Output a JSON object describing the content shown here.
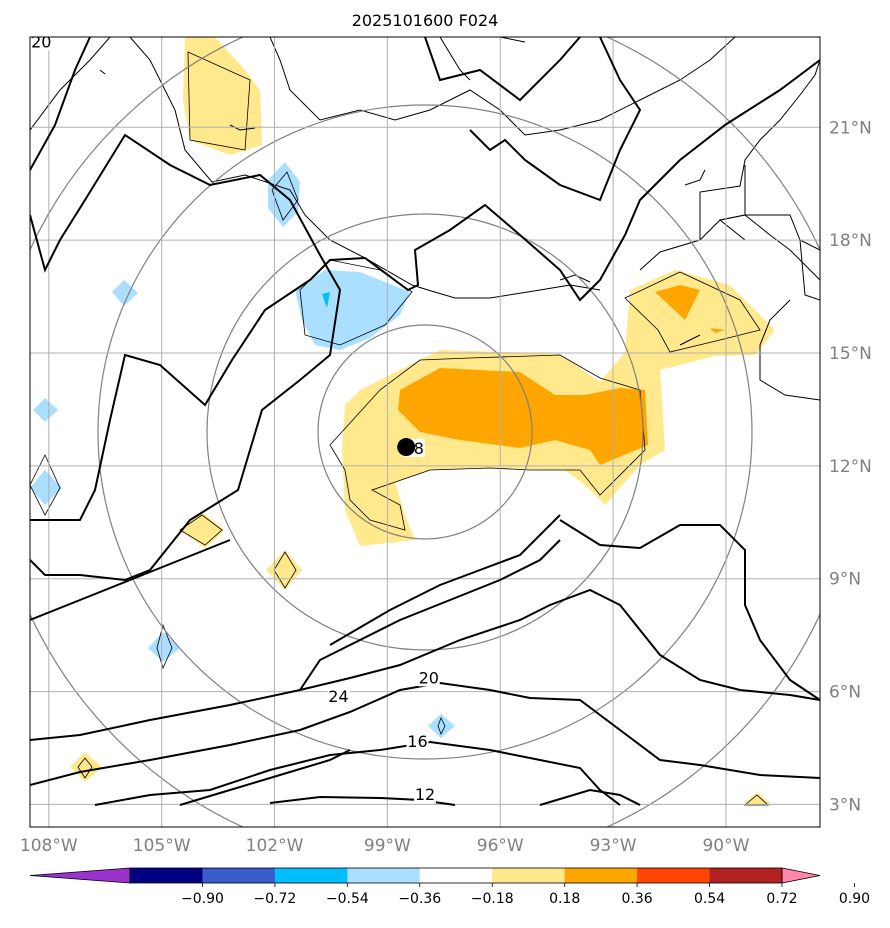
{
  "title": "2025101600 F024",
  "map": {
    "lon_range": [
      -108.5,
      -87.5
    ],
    "lat_range": [
      2.4,
      23.4
    ],
    "gridlines": true,
    "lon_ticks": [
      {
        "value": -108,
        "label": "108°W"
      },
      {
        "value": -105,
        "label": "105°W"
      },
      {
        "value": -102,
        "label": "102°W"
      },
      {
        "value": -99,
        "label": "99°W"
      },
      {
        "value": -96,
        "label": "96°W"
      },
      {
        "value": -93,
        "label": "93°W"
      },
      {
        "value": -90,
        "label": "90°W"
      }
    ],
    "lat_ticks": [
      {
        "value": 21,
        "label": "21°N"
      },
      {
        "value": 18,
        "label": "18°N"
      },
      {
        "value": 15,
        "label": "15°N"
      },
      {
        "value": 12,
        "label": "12°N"
      },
      {
        "value": 9,
        "label": "9°N"
      },
      {
        "value": 6,
        "label": "6°N"
      },
      {
        "value": 3,
        "label": "3°N"
      }
    ],
    "storm_center": {
      "lon": -98.5,
      "lat": 12.5
    },
    "contour_labels": [
      {
        "text": "28",
        "lon": -98.3,
        "lat": 12.4
      },
      {
        "text": "24",
        "lon": -100.3,
        "lat": 5.8
      },
      {
        "text": "20",
        "lon": -97.9,
        "lat": 6.3
      },
      {
        "text": "16",
        "lon": -98.2,
        "lat": 4.6
      },
      {
        "text": "12",
        "lon": -98.0,
        "lat": 3.2
      },
      {
        "text": "20",
        "lon": -108.2,
        "lat": 23.2
      }
    ]
  },
  "colorbar": {
    "extend": "both",
    "colors": [
      "#9933cc",
      "#000080",
      "#3a5ccc",
      "#00bfff",
      "#aadfff",
      "#ffffff",
      "#ffe98c",
      "#ffa500",
      "#ff4500",
      "#b22222",
      "#ff88aa"
    ],
    "tick_labels": [
      "−0.90",
      "−0.72",
      "−0.54",
      "−0.36",
      "−0.18",
      "0.18",
      "0.36",
      "0.54",
      "0.72",
      "0.90"
    ]
  }
}
